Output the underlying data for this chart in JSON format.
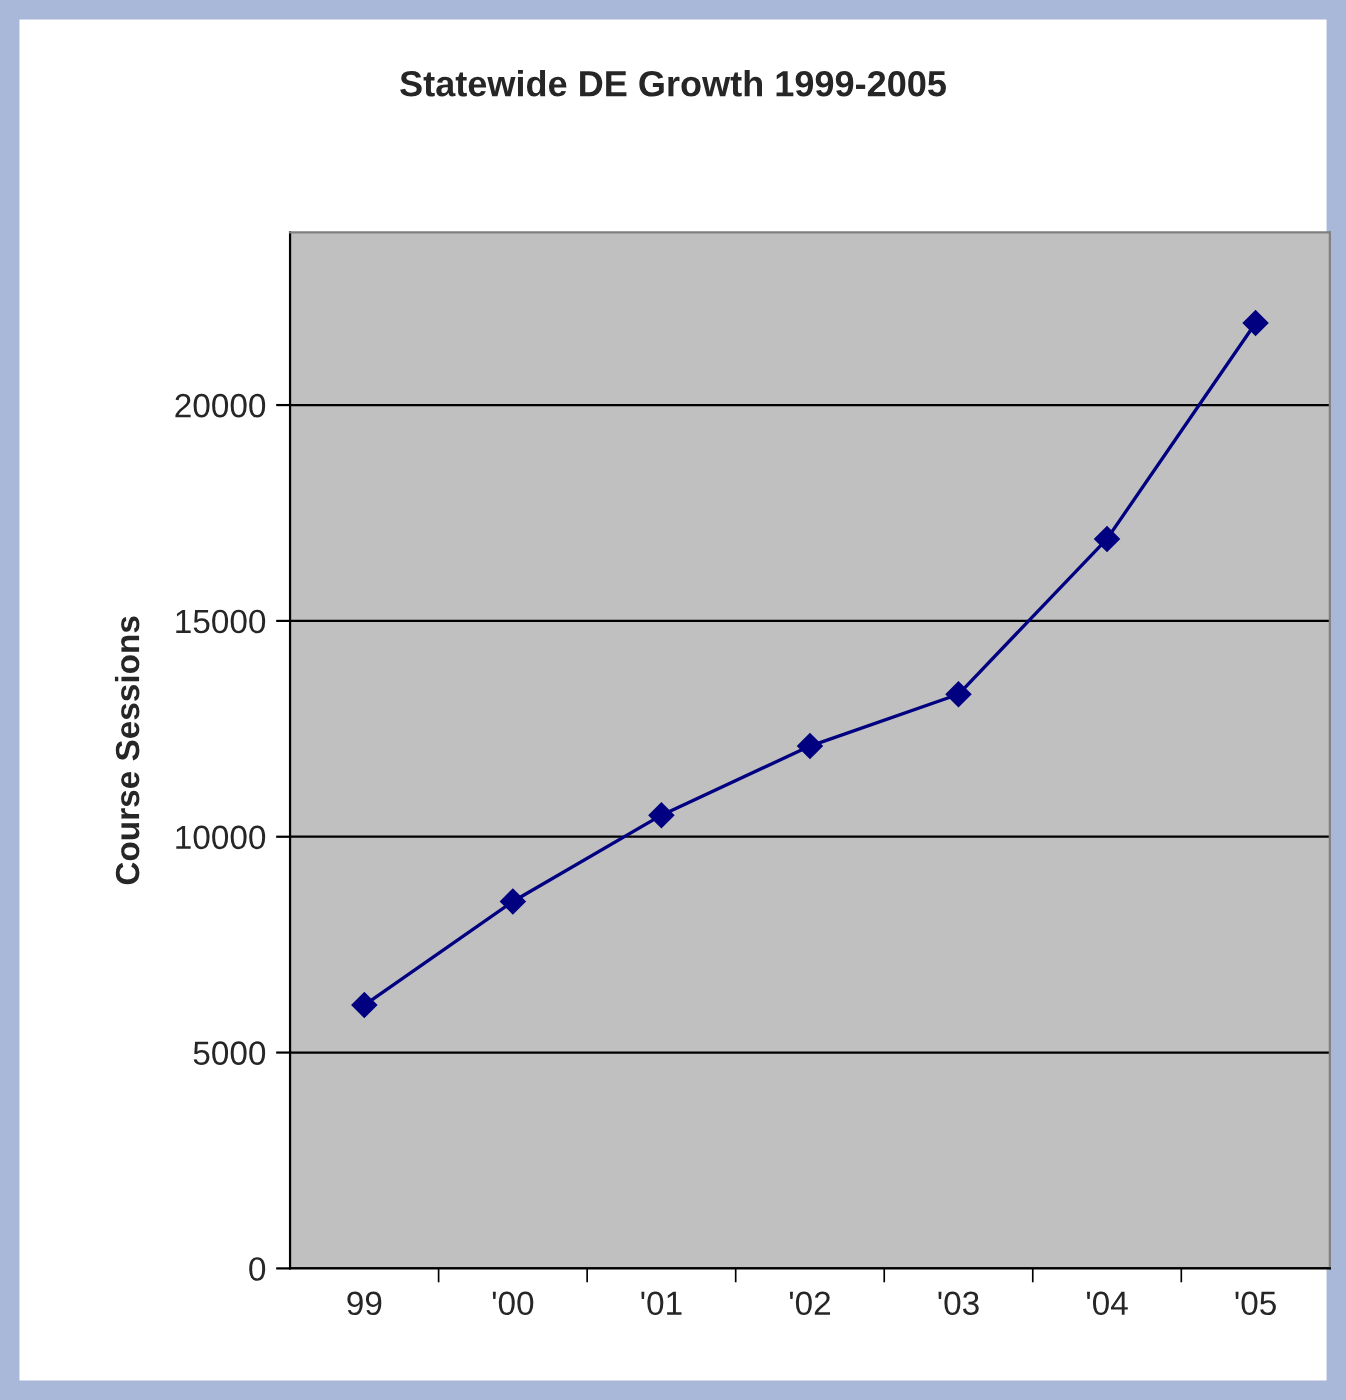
{
  "chart_data": {
    "type": "line",
    "title": "Statewide DE Growth 1999-2005",
    "ylabel": "Course Sessions",
    "categories": [
      "99",
      "'00",
      "'01",
      "'02",
      "'03",
      "'04",
      "'05"
    ],
    "series": [
      {
        "color": "#000080",
        "values": [
          6100,
          8500,
          10500,
          12100,
          13300,
          16900,
          21900
        ]
      }
    ],
    "ylim": [
      0,
      24000
    ],
    "yticks": [
      0,
      5000,
      10000,
      15000,
      20000
    ],
    "grid": "y",
    "marker": "diamond",
    "line_style": "solid",
    "legend": false
  }
}
